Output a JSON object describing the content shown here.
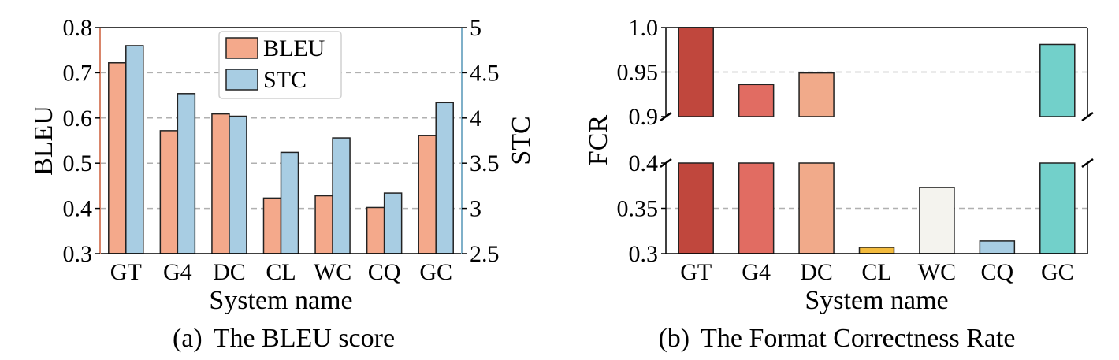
{
  "chart_data": [
    {
      "type": "bar",
      "subcaption": "(a)",
      "caption": "The BLEU score",
      "xlabel": "System name",
      "ylabel": "BLEU",
      "y2label": "STC",
      "categories": [
        "GT",
        "G4",
        "DC",
        "CL",
        "WC",
        "CQ",
        "GC"
      ],
      "ylim": [
        0.3,
        0.8
      ],
      "y2lim": [
        2.5,
        5
      ],
      "yticks": [
        "0.3",
        "0.4",
        "0.5",
        "0.6",
        "0.7",
        "0.8"
      ],
      "y2ticks": [
        "2.5",
        "3",
        "3.5",
        "4",
        "4.5",
        "5"
      ],
      "grid": "horizontal dashed",
      "legend_position": "top-center",
      "series": [
        {
          "name": "BLEU",
          "axis": "left",
          "color": "#f4a98b",
          "values": [
            0.722,
            0.572,
            0.609,
            0.423,
            0.428,
            0.402,
            0.561
          ]
        },
        {
          "name": "STC",
          "axis": "right",
          "color": "#a8cde3",
          "values": [
            4.8,
            4.27,
            4.02,
            3.62,
            3.78,
            3.17,
            4.17
          ]
        }
      ]
    },
    {
      "type": "bar",
      "subcaption": "(b)",
      "caption": "The Format Correctness Rate",
      "xlabel": "System name",
      "ylabel": "FCR",
      "categories": [
        "GT",
        "G4",
        "DC",
        "CL",
        "WC",
        "CQ",
        "GC"
      ],
      "broken_axis": true,
      "upper_ylim": [
        0.9,
        1.0
      ],
      "lower_ylim": [
        0.3,
        0.4
      ],
      "upper_yticks": [
        "0.9",
        "0.95",
        "1.0"
      ],
      "lower_yticks": [
        "0.3",
        "0.35",
        "0.4"
      ],
      "grid": "horizontal dashed",
      "values": [
        1.0,
        0.936,
        0.949,
        0.307,
        0.373,
        0.314,
        0.981
      ],
      "colors": [
        "#c0473d",
        "#e16c62",
        "#f1aa8a",
        "#f2ba3d",
        "#f4f3ee",
        "#a8cde3",
        "#72d0ca"
      ]
    }
  ]
}
